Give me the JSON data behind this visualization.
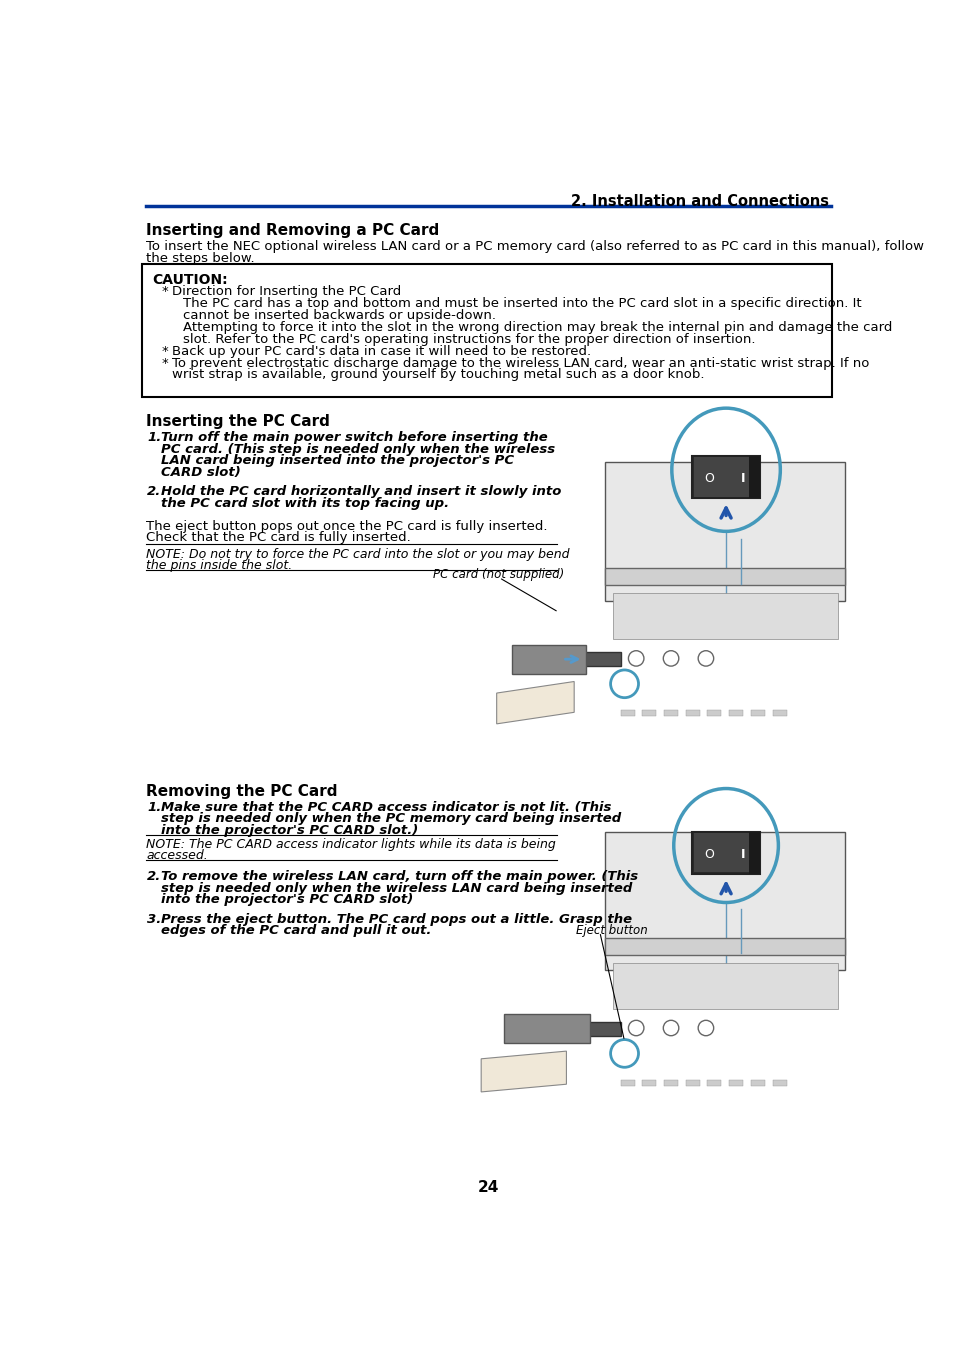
{
  "page_header": "2. Installation and Connections",
  "main_title": "Inserting and Removing a PC Card",
  "intro_line1": "To insert the NEC optional wireless LAN card or a PC memory card (also referred to as PC card in this manual), follow",
  "intro_line2": "the steps below.",
  "caution_title": "CAUTION:",
  "caution_bullet1_header": "Direction for Inserting the PC Card",
  "caution_b1_line1": "The PC card has a top and bottom and must be inserted into the PC card slot in a specific direction. It",
  "caution_b1_line2": "cannot be inserted backwards or upside-down.",
  "caution_b1_line3": "Attempting to force it into the slot in the wrong direction may break the internal pin and damage the card",
  "caution_b1_line4": "slot. Refer to the PC card's operating instructions for the proper direction of insertion.",
  "caution_bullet2": "Back up your PC card's data in case it will need to be restored.",
  "caution_bullet3_line1": "To prevent electrostatic discharge damage to the wireless LAN card, wear an anti-static wrist strap. If no",
  "caution_bullet3_line2": "wrist strap is available, ground yourself by touching metal such as a door knob.",
  "sec1_title": "Inserting the PC Card",
  "sec1_step1_line1": "Turn off the main power switch before inserting the",
  "sec1_step1_line2": "PC card. (This step is needed only when the wireless",
  "sec1_step1_line3": "LAN card being inserted into the projector's PC",
  "sec1_step1_line4": "CARD slot)",
  "sec1_step2_line1": "Hold the PC card horizontally and insert it slowly into",
  "sec1_step2_line2": "the PC card slot with its top facing up.",
  "sec1_normal1": "The eject button pops out once the PC card is fully inserted.",
  "sec1_normal2": "Check that the PC card is fully inserted.",
  "sec1_note1": "NOTE: Do not try to force the PC card into the slot or you may bend",
  "sec1_note2": "the pins inside the slot.",
  "pc_card_label": "PC card (not supplied)",
  "sec2_title": "Removing the PC Card",
  "sec2_step1_line1": "Make sure that the PC CARD access indicator is not lit. (This",
  "sec2_step1_line2": "step is needed only when the PC memory card being inserted",
  "sec2_step1_line3": "into the projector's PC CARD slot.)",
  "sec2_note1": "NOTE: The PC CARD access indicator lights while its data is being",
  "sec2_note2": "accessed.",
  "sec2_step2_line1": "To remove the wireless LAN card, turn off the main power. (This",
  "sec2_step2_line2": "step is needed only when the wireless LAN card being inserted",
  "sec2_step2_line3": "into the projector's PC CARD slot)",
  "sec2_step3_line1": "Press the eject button. The PC card pops out a little. Grasp the",
  "sec2_step3_line2": "edges of the PC card and pull it out.",
  "eject_label": "Eject button",
  "page_number": "24",
  "header_blue": "#003399",
  "circle_blue": "#4499bb",
  "arrow_blue": "#2255aa",
  "bg_color": "#ffffff",
  "text_color": "#000000",
  "switch_dark": "#333333",
  "switch_mid": "#555555",
  "switch_light": "#888888"
}
